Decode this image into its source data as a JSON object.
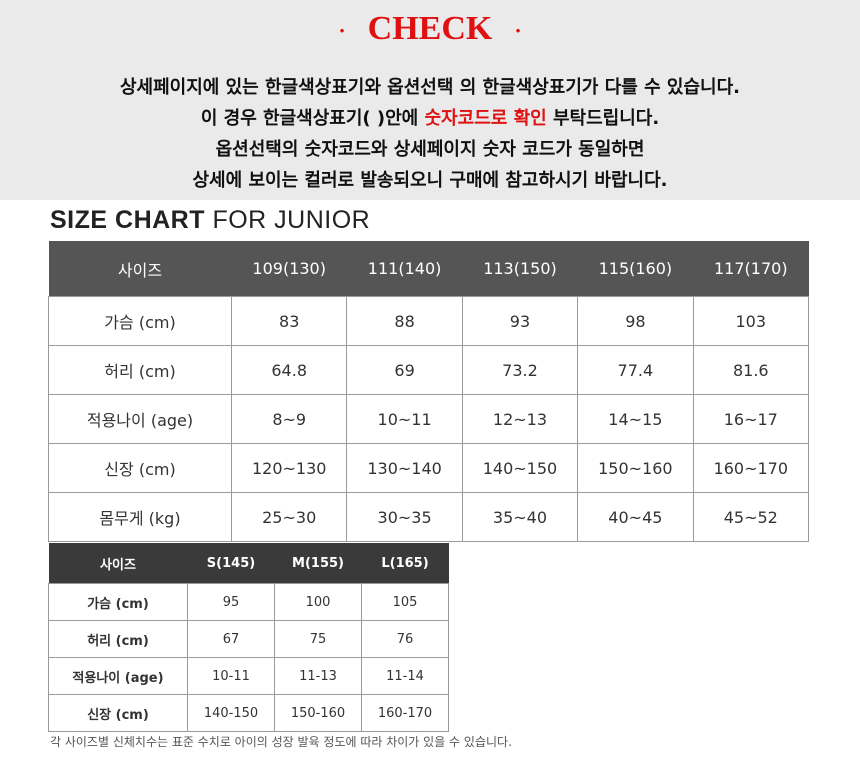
{
  "notice": {
    "dot_left": "·",
    "title": "CHECK",
    "dot_right": "·",
    "line1": "상세페이지에 있는 한글색상표기와 옵션선택 의 한글색상표기가 다를 수 있습니다.",
    "line2_pre": "이 경우 한글색상표기( )안에 ",
    "line2_highlight": "숫자코드로 확인",
    "line2_post": " 부탁드립니다.",
    "line3": "옵션선택의 숫자코드와 상세페이지 숫자 코드가 동일하면",
    "line4": "상세에 보이는 컬러로 발송되오니 구매에 참고하시기 바랍니다."
  },
  "size_chart_title": {
    "bold": "SIZE CHART",
    "light": "FOR JUNIOR"
  },
  "table1": {
    "headers": [
      "사이즈",
      "109(130)",
      "111(140)",
      "113(150)",
      "115(160)",
      "117(170)"
    ],
    "rows": [
      [
        "가슴 (cm)",
        "83",
        "88",
        "93",
        "98",
        "103"
      ],
      [
        "허리 (cm)",
        "64.8",
        "69",
        "73.2",
        "77.4",
        "81.6"
      ],
      [
        "적용나이 (age)",
        "8~9",
        "10~11",
        "12~13",
        "14~15",
        "16~17"
      ],
      [
        "신장 (cm)",
        "120~130",
        "130~140",
        "140~150",
        "150~160",
        "160~170"
      ],
      [
        "몸무게 (kg)",
        "25~30",
        "30~35",
        "35~40",
        "40~45",
        "45~52"
      ]
    ]
  },
  "table2": {
    "headers": [
      "사이즈",
      "S(145)",
      "M(155)",
      "L(165)"
    ],
    "rows": [
      [
        "가슴 (cm)",
        "95",
        "100",
        "105"
      ],
      [
        "허리 (cm)",
        "67",
        "75",
        "76"
      ],
      [
        "적용나이 (age)",
        "10-11",
        "11-13",
        "11-14"
      ],
      [
        "신장 (cm)",
        "140-150",
        "150-160",
        "160-170"
      ]
    ]
  },
  "footnote": "각 사이즈별 신체치수는 표준 수치로 아이의 성장 발육 정도에 따라 차이가 있을 수 있습니다.",
  "colors": {
    "accent_red": "#e01010",
    "header_gray": "#555555",
    "header_dark": "#3a3a3a",
    "notice_bg": "#eaeaea"
  }
}
